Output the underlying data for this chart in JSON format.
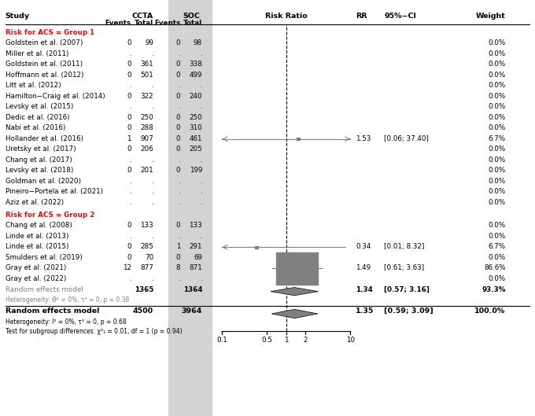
{
  "title": "",
  "group1_label": "Risk for ACS = Group 1",
  "group2_label": "Risk for ACS = Group 2",
  "studies": [
    {
      "name": "Goldstein et al. (2007)",
      "group": 1,
      "ccta_e": "0",
      "ccta_n": "99",
      "soc_e": "0",
      "soc_n": "98",
      "rr": null,
      "ci_lo": null,
      "ci_hi": null,
      "weight": "0.0%"
    },
    {
      "name": "Miller et al. (2011)",
      "group": 1,
      "ccta_e": ".",
      "ccta_n": ".",
      "soc_e": ".",
      "soc_n": ".",
      "rr": null,
      "ci_lo": null,
      "ci_hi": null,
      "weight": "0.0%"
    },
    {
      "name": "Goldstein et al. (2011)",
      "group": 1,
      "ccta_e": "0",
      "ccta_n": "361",
      "soc_e": "0",
      "soc_n": "338",
      "rr": null,
      "ci_lo": null,
      "ci_hi": null,
      "weight": "0.0%"
    },
    {
      "name": "Hoffmann et al. (2012)",
      "group": 1,
      "ccta_e": "0",
      "ccta_n": "501",
      "soc_e": "0",
      "soc_n": "499",
      "rr": null,
      "ci_lo": null,
      "ci_hi": null,
      "weight": "0.0%"
    },
    {
      "name": "Litt et al. (2012)",
      "group": 1,
      "ccta_e": ".",
      "ccta_n": ".",
      "soc_e": ".",
      "soc_n": ".",
      "rr": null,
      "ci_lo": null,
      "ci_hi": null,
      "weight": "0.0%"
    },
    {
      "name": "Hamilton−Craig et al. (2014)",
      "group": 1,
      "ccta_e": "0",
      "ccta_n": "322",
      "soc_e": "0",
      "soc_n": "240",
      "rr": null,
      "ci_lo": null,
      "ci_hi": null,
      "weight": "0.0%"
    },
    {
      "name": "Levsky et al. (2015)",
      "group": 1,
      "ccta_e": ".",
      "ccta_n": ".",
      "soc_e": ".",
      "soc_n": ".",
      "rr": null,
      "ci_lo": null,
      "ci_hi": null,
      "weight": "0.0%"
    },
    {
      "name": "Dedic et al. (2016)",
      "group": 1,
      "ccta_e": "0",
      "ccta_n": "250",
      "soc_e": "0",
      "soc_n": "250",
      "rr": null,
      "ci_lo": null,
      "ci_hi": null,
      "weight": "0.0%"
    },
    {
      "name": "Nabi et al. (2016)",
      "group": 1,
      "ccta_e": "0",
      "ccta_n": "288",
      "soc_e": "0",
      "soc_n": "310",
      "rr": null,
      "ci_lo": null,
      "ci_hi": null,
      "weight": "0.0%"
    },
    {
      "name": "Hollander et al. (2016)",
      "group": 1,
      "ccta_e": "1",
      "ccta_n": "907",
      "soc_e": "0",
      "soc_n": "461",
      "rr": 1.53,
      "ci_lo": 0.06,
      "ci_hi": 37.4,
      "weight": "6.7%"
    },
    {
      "name": "Uretsky et al. (2017)",
      "group": 1,
      "ccta_e": "0",
      "ccta_n": "206",
      "soc_e": "0",
      "soc_n": "205",
      "rr": null,
      "ci_lo": null,
      "ci_hi": null,
      "weight": "0.0%"
    },
    {
      "name": "Chang et al. (2017)",
      "group": 1,
      "ccta_e": ".",
      "ccta_n": ".",
      "soc_e": ".",
      "soc_n": ".",
      "rr": null,
      "ci_lo": null,
      "ci_hi": null,
      "weight": "0.0%"
    },
    {
      "name": "Levsky et al. (2018)",
      "group": 1,
      "ccta_e": "0",
      "ccta_n": "201",
      "soc_e": "0",
      "soc_n": "199",
      "rr": null,
      "ci_lo": null,
      "ci_hi": null,
      "weight": "0.0%"
    },
    {
      "name": "Goldman et al. (2020)",
      "group": 1,
      "ccta_e": ".",
      "ccta_n": ".",
      "soc_e": ".",
      "soc_n": ".",
      "rr": null,
      "ci_lo": null,
      "ci_hi": null,
      "weight": "0.0%"
    },
    {
      "name": "Pineiro−Portela et al. (2021)",
      "group": 1,
      "ccta_e": ".",
      "ccta_n": ".",
      "soc_e": ".",
      "soc_n": ".",
      "rr": null,
      "ci_lo": null,
      "ci_hi": null,
      "weight": "0.0%"
    },
    {
      "name": "Aziz et al. (2022)",
      "group": 1,
      "ccta_e": ".",
      "ccta_n": ".",
      "soc_e": ".",
      "soc_n": ".",
      "rr": null,
      "ci_lo": null,
      "ci_hi": null,
      "weight": "0.0%"
    },
    {
      "name": "Chang et al. (2008)",
      "group": 2,
      "ccta_e": "0",
      "ccta_n": "133",
      "soc_e": "0",
      "soc_n": "133",
      "rr": null,
      "ci_lo": null,
      "ci_hi": null,
      "weight": "0.0%"
    },
    {
      "name": "Linde et al. (2013)",
      "group": 2,
      "ccta_e": ".",
      "ccta_n": ".",
      "soc_e": ".",
      "soc_n": ".",
      "rr": null,
      "ci_lo": null,
      "ci_hi": null,
      "weight": "0.0%"
    },
    {
      "name": "Linde et al. (2015)",
      "group": 2,
      "ccta_e": "0",
      "ccta_n": "285",
      "soc_e": "1",
      "soc_n": "291",
      "rr": 0.34,
      "ci_lo": 0.01,
      "ci_hi": 8.32,
      "weight": "6.7%"
    },
    {
      "name": "Smulders et al. (2019)",
      "group": 2,
      "ccta_e": "0",
      "ccta_n": "70",
      "soc_e": "0",
      "soc_n": "69",
      "rr": null,
      "ci_lo": null,
      "ci_hi": null,
      "weight": "0.0%"
    },
    {
      "name": "Gray et al. (2021)",
      "group": 2,
      "ccta_e": "12",
      "ccta_n": "877",
      "soc_e": "8",
      "soc_n": "871",
      "rr": 1.49,
      "ci_lo": 0.61,
      "ci_hi": 3.63,
      "weight": "86.6%"
    },
    {
      "name": "Gray et al. (2022)",
      "group": 2,
      "ccta_e": ".",
      "ccta_n": ".",
      "soc_e": ".",
      "soc_n": ".",
      "rr": null,
      "ci_lo": null,
      "ci_hi": null,
      "weight": "0.0%"
    }
  ],
  "subgroup_summary": {
    "label": "Random effects model",
    "ccta_total": "1365",
    "soc_total": "1364",
    "rr": 1.34,
    "ci_lo": 0.57,
    "ci_hi": 3.16,
    "weight": "93.3%",
    "heterogeneity": "Heterogeneity: ϴ² = 0%, τ² = 0, p = 0.38"
  },
  "overall_summary": {
    "label": "Random effects model",
    "ccta_total": "4500",
    "soc_total": "3964",
    "rr": 1.35,
    "ci_lo": 0.59,
    "ci_hi": 3.09,
    "weight": "100.0%",
    "heterogeneity": "Heterogeneity: I² = 0%, τ² = 0, p = 0.68",
    "subgroup_test": "Test for subgroup differences: χ²₁ = 0.01, df = 1 (p = 0.94)"
  },
  "log_scale_ticks": [
    0.1,
    0.5,
    1,
    2,
    10
  ],
  "log_scale_tick_labels": [
    "0.1",
    "0.5",
    "1",
    "2",
    "10"
  ],
  "bg_color_soc": "#d3d3d3",
  "marker_color": "#808080",
  "diamond_color": "#808080",
  "group_label_color": "#ff0000",
  "subgroup_label_color": "#808080"
}
